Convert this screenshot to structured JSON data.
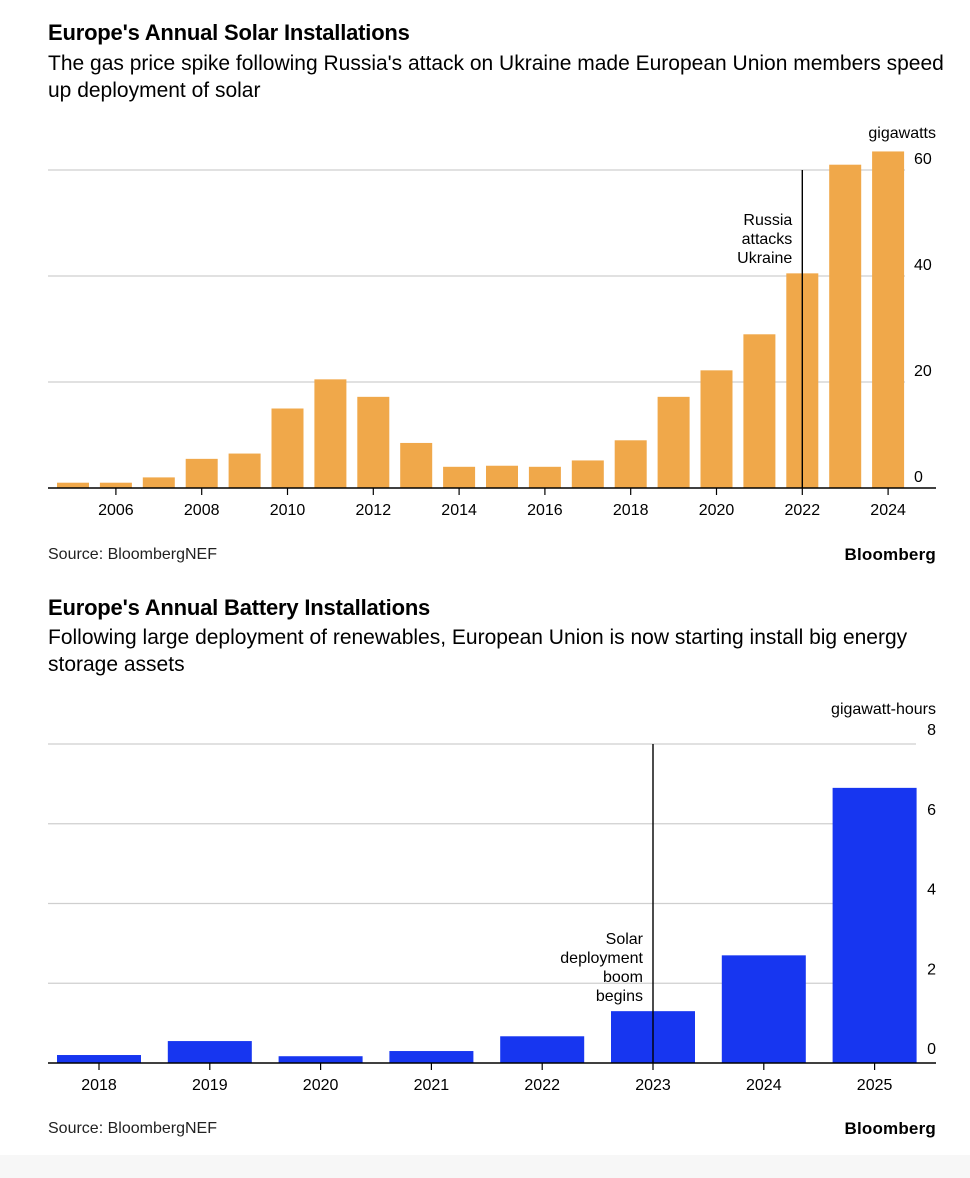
{
  "colors": {
    "solar": "#f0a84a",
    "battery": "#1736f0",
    "grid": "#cfcfcf",
    "axis": "#000000"
  },
  "chart_data": [
    {
      "type": "bar",
      "title": "Europe's Annual Solar Installations",
      "subtitle": "The gas price spike following Russia's attack on Ukraine made European Union members speed up deployment of solar",
      "unit_label": "gigawatts",
      "source": "Source: BloombergNEF",
      "brand": "Bloomberg",
      "categories": [
        2005,
        2006,
        2007,
        2008,
        2009,
        2010,
        2011,
        2012,
        2013,
        2014,
        2015,
        2016,
        2017,
        2018,
        2019,
        2020,
        2021,
        2022,
        2023,
        2024
      ],
      "values": [
        1.0,
        1.0,
        2.0,
        5.5,
        6.5,
        15.0,
        20.5,
        17.2,
        8.5,
        4.0,
        4.2,
        4.0,
        5.2,
        9.0,
        17.2,
        22.2,
        29.0,
        40.5,
        61.0,
        63.5
      ],
      "x_tick_labels": [
        "2006",
        "2008",
        "2010",
        "2012",
        "2014",
        "2016",
        "2018",
        "2020",
        "2022",
        "2024"
      ],
      "y_ticks": [
        0,
        20,
        40,
        60
      ],
      "y_tick_labels": [
        "0",
        "20",
        "40",
        "60"
      ],
      "ylim": [
        0,
        60
      ],
      "annotation": {
        "x": 2022,
        "lines": [
          "Russia",
          "attacks",
          "Ukraine"
        ]
      }
    },
    {
      "type": "bar",
      "title": "Europe's Annual Battery Installations",
      "subtitle": "Following large deployment of renewables, European Union is now starting install big energy storage assets",
      "unit_label": "gigawatt-hours",
      "source": "Source: BloombergNEF",
      "brand": "Bloomberg",
      "categories": [
        "2018",
        "2019",
        "2020",
        "2021",
        "2022",
        "2023",
        "2024",
        "2025"
      ],
      "values": [
        0.2,
        0.55,
        0.17,
        0.3,
        0.67,
        1.3,
        2.7,
        6.9
      ],
      "y_ticks": [
        0,
        2,
        4,
        6,
        8
      ],
      "y_tick_labels": [
        "0",
        "2",
        "4",
        "6",
        "8"
      ],
      "ylim": [
        0,
        8
      ],
      "annotation": {
        "category": "2023",
        "lines": [
          "Solar",
          "deployment",
          "boom",
          "begins"
        ]
      }
    }
  ]
}
